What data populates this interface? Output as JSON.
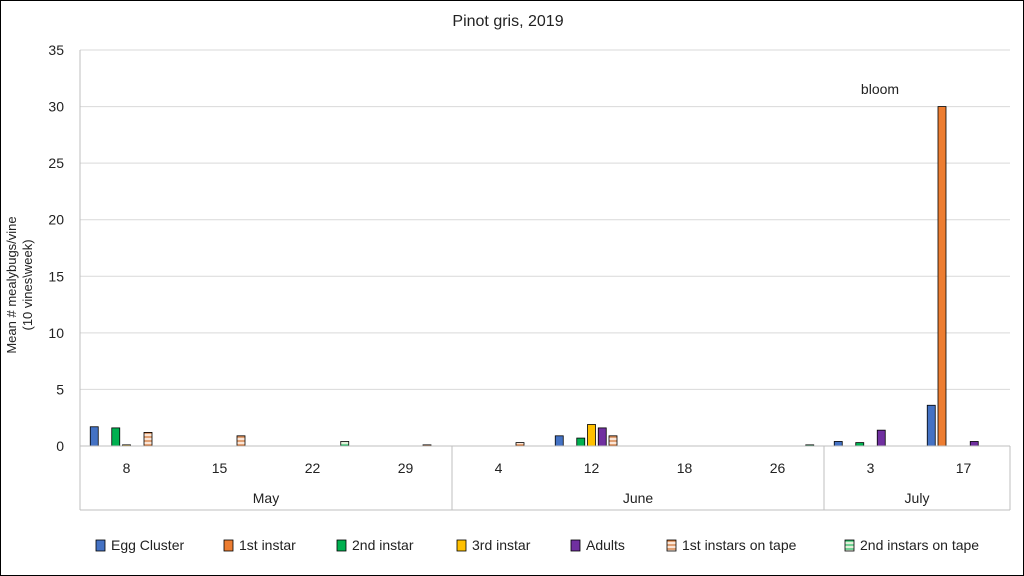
{
  "chart_data": {
    "type": "bar",
    "title": "Pinot gris, 2019",
    "ylabel_lines": [
      "Mean # mealybugs/vine",
      "(10 vines\\week)"
    ],
    "ylim": [
      0,
      35
    ],
    "yticks": [
      0,
      5,
      10,
      15,
      20,
      25,
      30,
      35
    ],
    "grid": true,
    "legend_position": "bottom",
    "annotation": "bloom",
    "categories": [
      "8",
      "15",
      "22",
      "29",
      "4",
      "12",
      "18",
      "26",
      "3",
      "17"
    ],
    "months": [
      {
        "label": "May",
        "count": 4
      },
      {
        "label": "June",
        "count": 4
      },
      {
        "label": "July",
        "count": 2
      }
    ],
    "series": [
      {
        "name": "Egg Cluster",
        "color": "#4472C4",
        "pattern": "solid",
        "values": [
          1.7,
          0,
          0,
          0,
          0,
          0.9,
          0,
          0,
          0.4,
          3.6
        ]
      },
      {
        "name": "1st instar",
        "color": "#ED7D31",
        "pattern": "solid",
        "values": [
          0,
          0,
          0,
          0,
          0,
          0,
          0,
          0,
          0,
          30.0
        ]
      },
      {
        "name": "2nd instar",
        "color": "#00B050",
        "pattern": "solid",
        "values": [
          1.6,
          0,
          0,
          0,
          0,
          0.7,
          0,
          0,
          0.3,
          0
        ]
      },
      {
        "name": "3rd instar",
        "color": "#FFC000",
        "pattern": "solid",
        "values": [
          0.1,
          0,
          0,
          0,
          0,
          1.9,
          0,
          0,
          0,
          0
        ]
      },
      {
        "name": "Adults",
        "color": "#7030A0",
        "pattern": "solid",
        "values": [
          0,
          0,
          0,
          0,
          0,
          1.6,
          0,
          0,
          1.4,
          0.4
        ]
      },
      {
        "name": "1st instars on tape",
        "color": "#F8CBAD",
        "pattern": "hstripe",
        "values": [
          1.2,
          0.9,
          0,
          0.1,
          0.3,
          0.9,
          0,
          0,
          0,
          0
        ]
      },
      {
        "name": "2nd instars on tape",
        "color": "#A9D18E",
        "pattern": "hstripe",
        "values": [
          0,
          0,
          0.4,
          0,
          0,
          0,
          0,
          0.1,
          0,
          0
        ]
      }
    ]
  }
}
